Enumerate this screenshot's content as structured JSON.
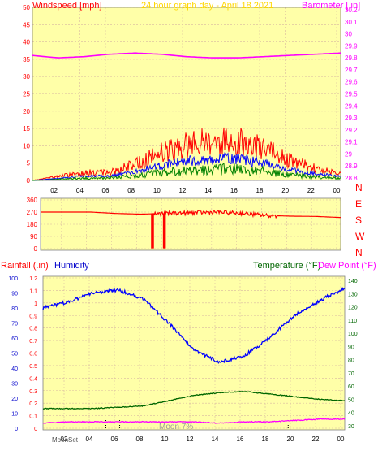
{
  "title": "24 hour graph day - April 18 2021",
  "top": {
    "left_label": "Windspeed [mph]",
    "right_label": "Barometer [.in]",
    "left_ticks": [
      "0",
      "5",
      "10",
      "15",
      "20",
      "25",
      "30",
      "35",
      "40",
      "45",
      "50"
    ],
    "right_ticks": [
      "28.8",
      "28.9",
      "29",
      "29.1",
      "29.2",
      "29.3",
      "29.4",
      "29.5",
      "29.6",
      "29.7",
      "29.8",
      "29.9",
      "30",
      "30.1",
      "30.2"
    ],
    "time_ticks": [
      "02",
      "04",
      "06",
      "08",
      "10",
      "12",
      "14",
      "16",
      "18",
      "20",
      "22",
      "00"
    ]
  },
  "direction": {
    "left_ticks": [
      "0",
      "90",
      "180",
      "270",
      "360"
    ],
    "compass": [
      "N",
      "W",
      "S",
      "E",
      "N"
    ]
  },
  "bottom": {
    "left_label": "Rainfall (.in)",
    "humidity_label": "Humidity",
    "temp_label": "Temperature (°F)",
    "dew_label": "Dew Point (°F)",
    "rain_ticks": [
      "0",
      "0.1",
      "0.2",
      "0.3",
      "0.4",
      "0.5",
      "0.6",
      "0.7",
      "0.8",
      "0.9",
      "1",
      "1.1",
      "1.2"
    ],
    "hum_ticks": [
      "0",
      "10",
      "20",
      "30",
      "40",
      "50",
      "60",
      "70",
      "80",
      "90",
      "100"
    ],
    "temp_ticks": [
      "30",
      "40",
      "50",
      "60",
      "70",
      "80",
      "90",
      "100",
      "110",
      "120",
      "130",
      "140"
    ],
    "time_ticks": [
      "02",
      "04",
      "06",
      "08",
      "10",
      "12",
      "14",
      "16",
      "18",
      "20",
      "22",
      "00"
    ],
    "moon_rise": "MoonSet",
    "moon_label": "Moon 7%"
  },
  "colors": {
    "panel_bg": "#ffffa8",
    "grid": "#d8b8a0",
    "windspeed": "#ff0000",
    "gust_blue": "#0000ff",
    "avg_green": "#008000",
    "barometer": "#ff00ff",
    "direction": "#ff0000",
    "humidity": "#0000ff",
    "temperature": "#006600",
    "dew_point": "#ff00ff",
    "title": "#ffd700"
  },
  "chart_data": [
    {
      "type": "line",
      "title": "24 hour graph day - April 18 2021",
      "ylabel": "Windspeed [mph]",
      "y2label": "Barometer [.in]",
      "ylim": [
        0,
        50
      ],
      "y2lim": [
        28.8,
        30.2
      ],
      "x": [
        "00",
        "02",
        "04",
        "06",
        "08",
        "10",
        "12",
        "14",
        "16",
        "18",
        "20",
        "22",
        "00"
      ],
      "series": [
        {
          "name": "Windspeed [mph]",
          "values": [
            0,
            1,
            2,
            2,
            4,
            7,
            9,
            10,
            10,
            8,
            5,
            3,
            2
          ]
        },
        {
          "name": "Barometer [.in]",
          "values": [
            29.82,
            29.8,
            29.81,
            29.83,
            29.84,
            29.83,
            29.81,
            29.8,
            29.8,
            29.81,
            29.82,
            29.83,
            29.84
          ]
        }
      ]
    },
    {
      "type": "line",
      "ylabel": "Wind Direction",
      "ylim": [
        0,
        360
      ],
      "x": [
        "00",
        "02",
        "04",
        "06",
        "08",
        "10",
        "12",
        "14",
        "16",
        "18",
        "20",
        "22",
        "00"
      ],
      "series": [
        {
          "values": [
            270,
            270,
            270,
            260,
            255,
            260,
            265,
            270,
            262,
            245,
            240,
            238,
            230
          ]
        }
      ]
    },
    {
      "type": "line",
      "ylabel": "Rainfall (.in)",
      "ylim": [
        0,
        1.2
      ],
      "x": [
        "00",
        "02",
        "04",
        "06",
        "08",
        "10",
        "12",
        "14",
        "16",
        "18",
        "20",
        "22",
        "00"
      ],
      "series": [
        {
          "name": "Humidity",
          "values": [
            80,
            84,
            90,
            92,
            86,
            70,
            52,
            44,
            48,
            60,
            75,
            85,
            93
          ]
        },
        {
          "name": "Temperature (°F)",
          "values": [
            43,
            43,
            43,
            44,
            45,
            49,
            53,
            55,
            56,
            54,
            52,
            50,
            49
          ]
        },
        {
          "name": "Dew Point (°F)",
          "values": [
            32,
            33,
            33,
            33,
            33,
            33,
            33,
            32,
            33,
            33,
            34,
            35,
            35
          ]
        }
      ]
    }
  ]
}
